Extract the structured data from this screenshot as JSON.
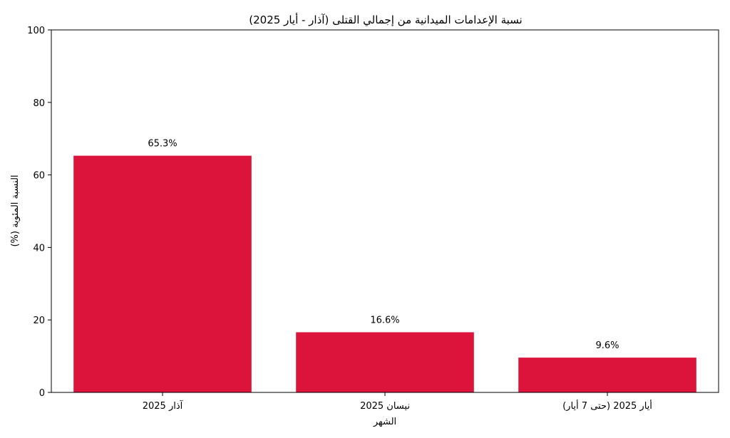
{
  "chart_data": {
    "type": "bar",
    "title": "نسبة الإعدامات الميدانية من إجمالي القتلى (آذار - أيار 2025)",
    "xlabel": "الشهر",
    "ylabel": "النسبة المئوية (%)",
    "categories": [
      "آذار 2025",
      "نيسان 2025",
      "أيار 2025 (حتى 7 أيار)"
    ],
    "values": [
      65.3,
      16.6,
      9.6
    ],
    "data_labels": [
      "65.3%",
      "16.6%",
      "9.6%"
    ],
    "ylim": [
      0,
      100
    ],
    "yticks": [
      0,
      20,
      40,
      60,
      80,
      100
    ],
    "grid": false,
    "bar_color": "#dc143c"
  }
}
